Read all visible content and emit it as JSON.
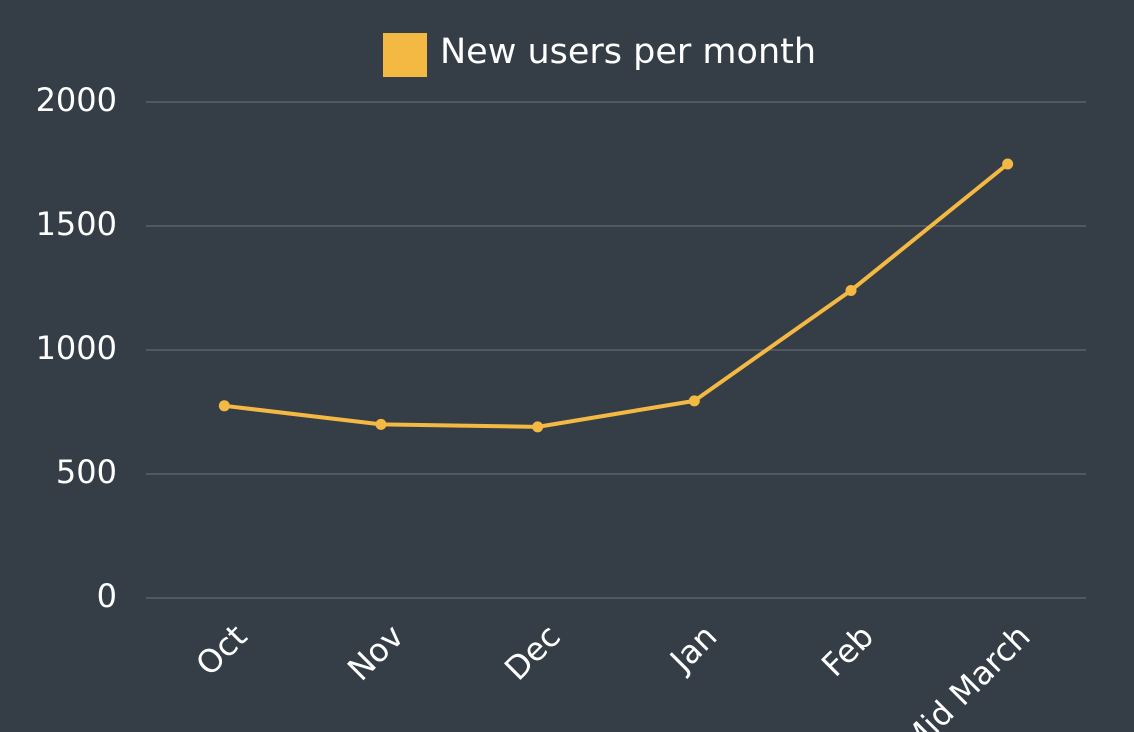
{
  "chart_data": {
    "type": "line",
    "categories": [
      "Oct",
      "Nov",
      "Dec",
      "Jan",
      "Feb",
      "Mid March"
    ],
    "series": [
      {
        "name": "New users per month",
        "color": "#f4b942",
        "values": [
          775,
          700,
          690,
          795,
          1240,
          1750
        ]
      }
    ],
    "ylim": [
      0,
      2000
    ],
    "yticks": [
      0,
      500,
      1000,
      1500,
      2000
    ],
    "grid": true,
    "legend": "top"
  }
}
